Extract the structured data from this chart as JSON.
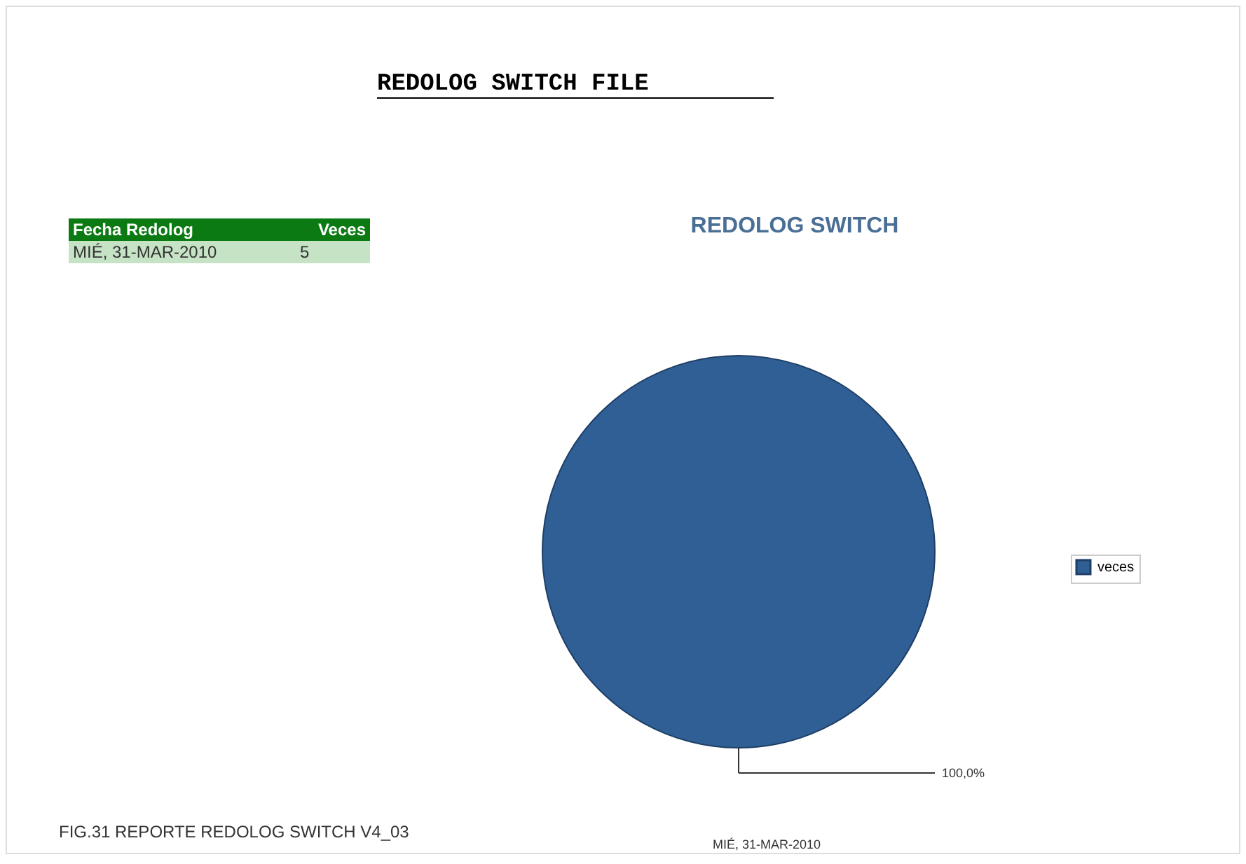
{
  "chart_data": {
    "type": "pie",
    "title": "REDOLOG SWITCH FILE",
    "subtitle": "REDOLOG SWITCH",
    "categories": [
      "MIÉ, 31-MAR-2010"
    ],
    "series": [
      {
        "name": "veces",
        "color": "#2f5f95",
        "values": [
          100
        ]
      }
    ],
    "value_labels": [
      "100,0%"
    ],
    "legend": "right",
    "annotations": [
      "Fecha Redolog",
      "Veces",
      "MIÉ, 31-MAR-2010",
      "5",
      "FIG.31  REPORTE REDOLOG SWITCH V4_03"
    ]
  }
}
